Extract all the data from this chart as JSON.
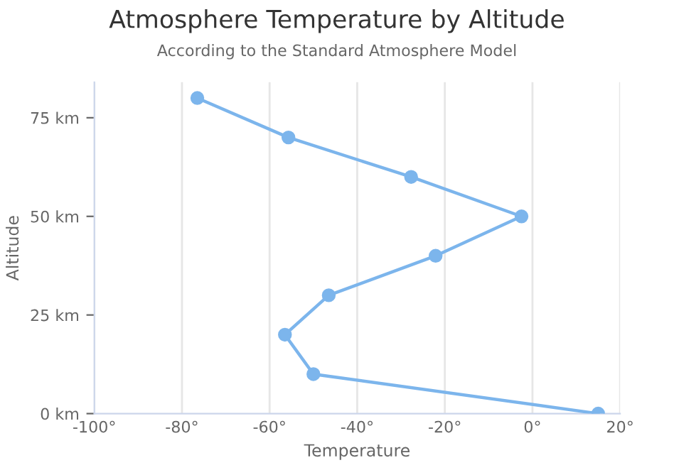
{
  "chart_data": {
    "type": "line",
    "title": "Atmosphere Temperature by Altitude",
    "subtitle": "According to the Standard Atmosphere Model",
    "xlabel": "Temperature",
    "ylabel": "Altitude",
    "x": [
      15,
      -50,
      -56.5,
      -46.5,
      -22.1,
      -2.5,
      -27.7,
      -55.7,
      -76.5
    ],
    "series": [
      {
        "color": "#7cb5ec",
        "values": [
          0,
          10,
          20,
          30,
          40,
          50,
          60,
          70,
          80
        ]
      }
    ],
    "xlim": [
      -100,
      20
    ],
    "xticks": [
      {
        "value": -100,
        "label": "-100°"
      },
      {
        "value": -80,
        "label": "-80°"
      },
      {
        "value": -60,
        "label": "-60°"
      },
      {
        "value": -40,
        "label": "-40°"
      },
      {
        "value": -20,
        "label": "-20°"
      },
      {
        "value": 0,
        "label": "0°"
      },
      {
        "value": 20,
        "label": "20°"
      }
    ],
    "ylim": [
      0,
      84
    ],
    "yticks": [
      {
        "value": 0,
        "label": "0 km"
      },
      {
        "value": 25,
        "label": "25 km"
      },
      {
        "value": 50,
        "label": "50 km"
      },
      {
        "value": 75,
        "label": "75 km"
      }
    ],
    "grid": "x",
    "marker": "circle",
    "line_style": "solid"
  }
}
